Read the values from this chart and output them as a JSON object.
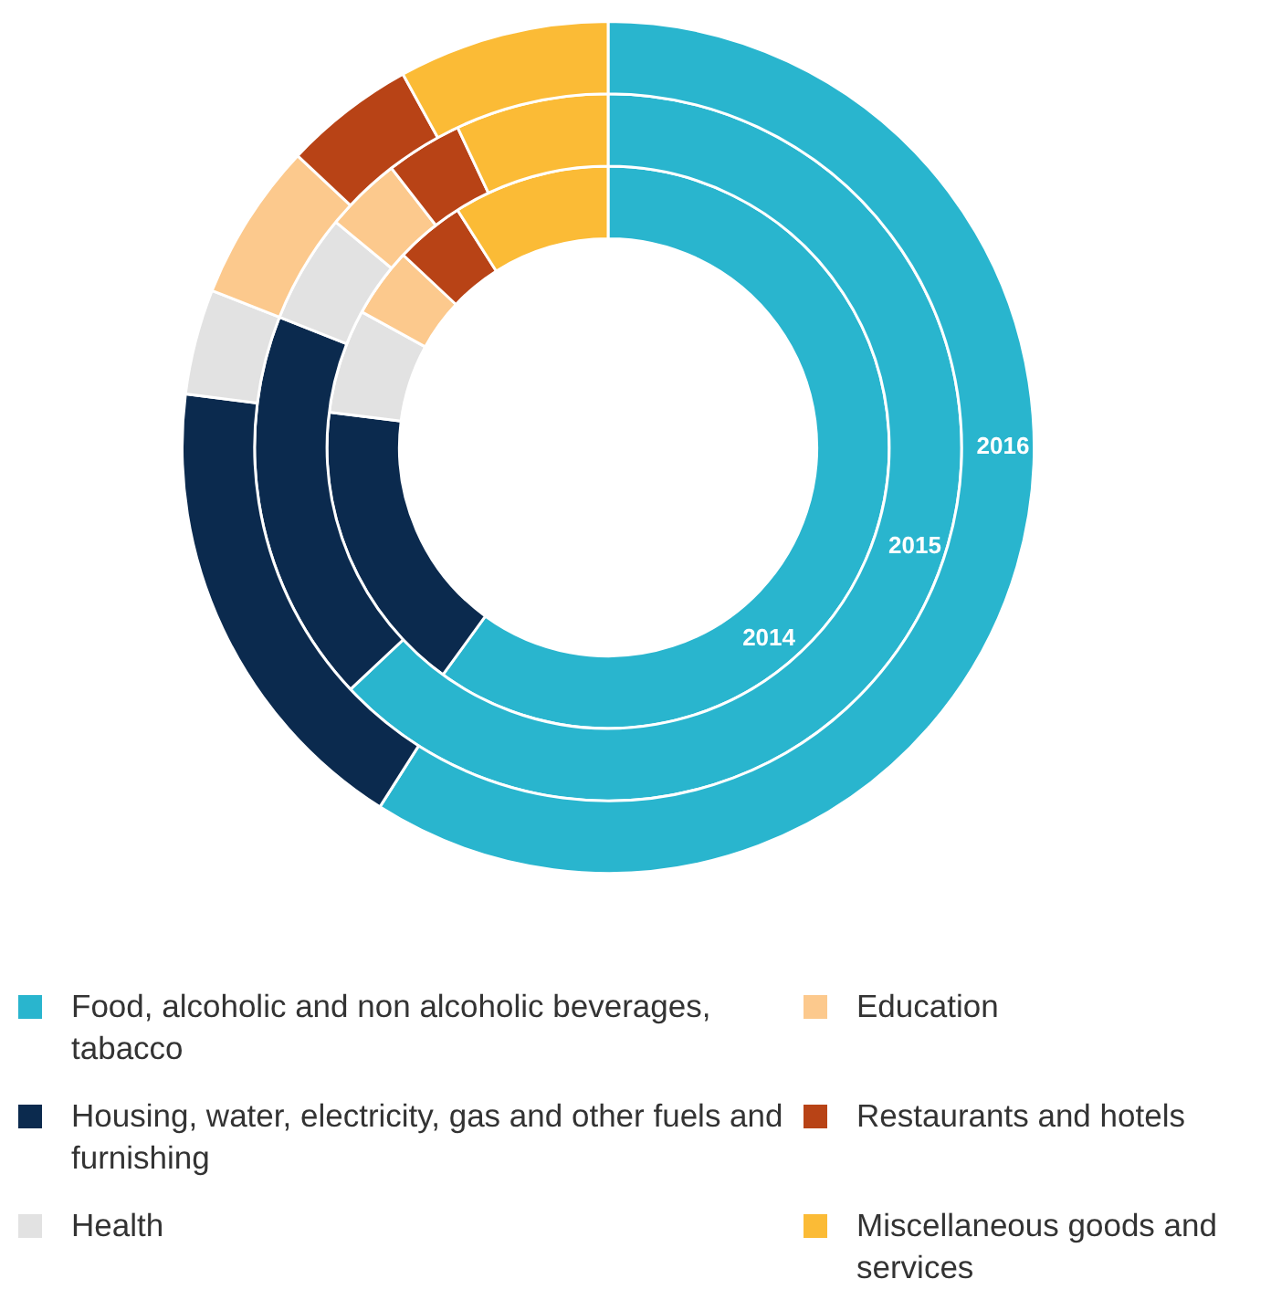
{
  "chart_data": {
    "type": "donut",
    "categories": [
      "Food, alcoholic and non alcoholic beverages, tabacco",
      "Housing, water, electricity, gas and other fuels and furnishing",
      "Health",
      "Education",
      "Restaurants and hotels",
      "Miscellaneous goods and services"
    ],
    "colors": [
      "#29b5ce",
      "#0b2a4e",
      "#e2e2e2",
      "#fcc98d",
      "#b84316",
      "#fbbb36"
    ],
    "series": [
      {
        "name": "2016",
        "values": [
          59,
          18,
          4,
          6,
          5,
          8
        ]
      },
      {
        "name": "2015",
        "values": [
          63,
          18,
          5,
          3.5,
          3.5,
          7
        ]
      },
      {
        "name": "2014",
        "values": [
          60,
          17,
          6,
          4,
          4,
          9
        ]
      }
    ],
    "legend": "bottom"
  }
}
